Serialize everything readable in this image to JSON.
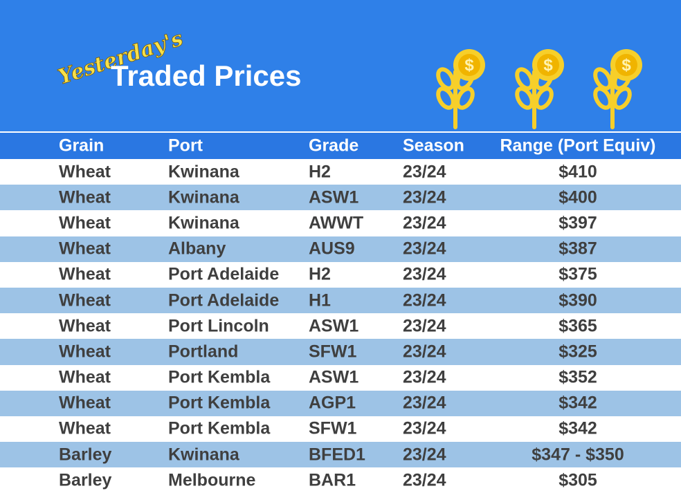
{
  "header": {
    "title_prefix": "Yesterday's",
    "title": "Traded Prices"
  },
  "table": {
    "columns": [
      "Grain",
      "Port",
      "Grade",
      "Season",
      "Range (Port Equiv)"
    ],
    "rows": [
      [
        "Wheat",
        "Kwinana",
        "H2",
        "23/24",
        "$410"
      ],
      [
        "Wheat",
        "Kwinana",
        "ASW1",
        "23/24",
        "$400"
      ],
      [
        "Wheat",
        "Kwinana",
        "AWWT",
        "23/24",
        "$397"
      ],
      [
        "Wheat",
        "Albany",
        "AUS9",
        "23/24",
        "$387"
      ],
      [
        "Wheat",
        "Port Adelaide",
        "H2",
        "23/24",
        "$375"
      ],
      [
        "Wheat",
        "Port Adelaide",
        "H1",
        "23/24",
        "$390"
      ],
      [
        "Wheat",
        "Port Lincoln",
        "ASW1",
        "23/24",
        "$365"
      ],
      [
        "Wheat",
        "Portland",
        "SFW1",
        "23/24",
        "$325"
      ],
      [
        "Wheat",
        "Port Kembla",
        "ASW1",
        "23/24",
        "$352"
      ],
      [
        "Wheat",
        "Port Kembla",
        "AGP1",
        "23/24",
        "$342"
      ],
      [
        "Wheat",
        "Port Kembla",
        "SFW1",
        "23/24",
        "$342"
      ],
      [
        "Barley",
        "Kwinana",
        "BFED1",
        "23/24",
        "$347 - $350"
      ],
      [
        "Barley",
        "Melbourne",
        "BAR1",
        "23/24",
        "$305"
      ]
    ]
  }
}
